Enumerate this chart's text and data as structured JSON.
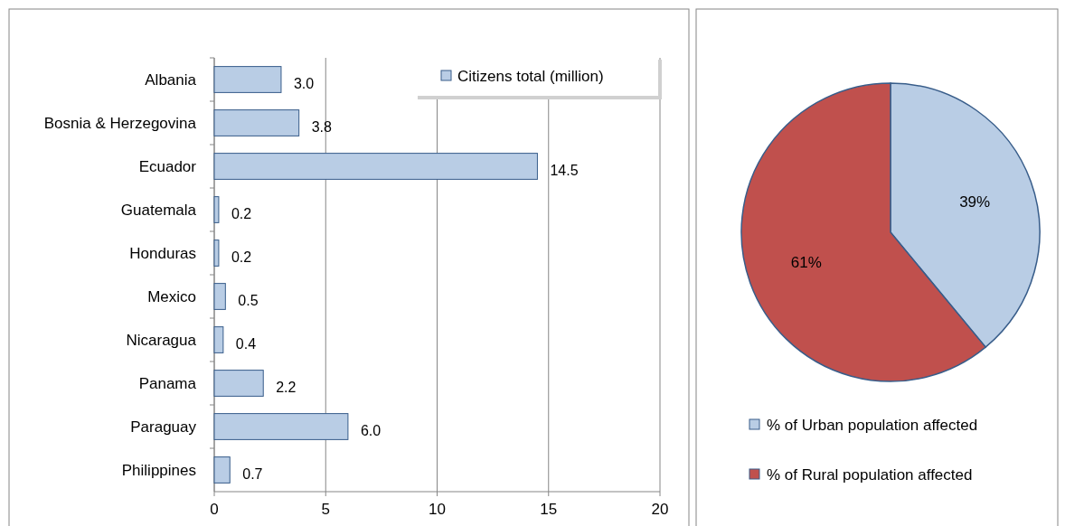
{
  "chart_data": [
    {
      "type": "bar",
      "orientation": "horizontal",
      "categories": [
        "Albania",
        "Bosnia & Herzegovina",
        "Ecuador",
        "Guatemala",
        "Honduras",
        "Mexico",
        "Nicaragua",
        "Panama",
        "Paraguay",
        "Philippines"
      ],
      "series": [
        {
          "name": "Citizens total (million)",
          "color": "#b9cde5",
          "values": [
            3.0,
            3.8,
            14.5,
            0.2,
            0.2,
            0.5,
            0.4,
            2.2,
            6.0,
            0.7
          ],
          "value_labels": [
            "3.0",
            "3.8",
            "14.5",
            "0.2",
            "0.2",
            "0.5",
            "0.4",
            "2.2",
            "6.0",
            "0.7"
          ]
        }
      ],
      "xlim": [
        0,
        20
      ],
      "xticks": [
        0,
        5,
        10,
        15,
        20
      ],
      "grid": "x",
      "legend": "top right"
    },
    {
      "type": "pie",
      "categories": [
        "% of Urban population affected",
        "% of Rural population affected"
      ],
      "values": [
        39,
        61
      ],
      "colors": [
        "#b9cde5",
        "#c0504d"
      ],
      "value_labels": [
        "39%",
        "61%"
      ],
      "legend": "bottom"
    }
  ]
}
